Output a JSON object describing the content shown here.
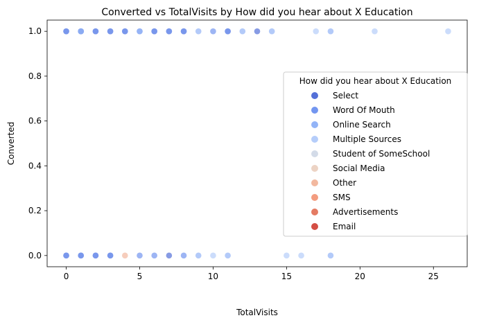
{
  "chart_data": {
    "type": "scatter",
    "title": "Converted vs TotalVisits by How did you hear about X Education",
    "xlabel": "TotalVisits",
    "ylabel": "Converted",
    "xlim": [
      -1.3,
      27.3
    ],
    "ylim": [
      -0.05,
      1.05
    ],
    "xticks": [
      0,
      5,
      10,
      15,
      20,
      25
    ],
    "yticks": [
      0.0,
      0.2,
      0.4,
      0.6,
      0.8,
      1.0
    ],
    "grid": false,
    "legend": {
      "title": "How did you hear about X Education",
      "placement": "center-right"
    },
    "series": [
      {
        "name": "Select",
        "color": "#5470d8",
        "x": [
          0,
          1,
          2,
          3,
          4,
          6,
          7,
          8,
          11,
          13,
          0,
          1,
          2,
          3,
          7
        ],
        "y": [
          1,
          1,
          1,
          1,
          1,
          1,
          1,
          1,
          1,
          1,
          0,
          0,
          0,
          0,
          0
        ]
      },
      {
        "name": "Word Of Mouth",
        "color": "#7396f0",
        "x": [
          0,
          1,
          2,
          3,
          4,
          5,
          6,
          7,
          8,
          10,
          11,
          0,
          1,
          2,
          3,
          5,
          6,
          8
        ],
        "y": [
          1,
          1,
          1,
          1,
          1,
          1,
          1,
          1,
          1,
          1,
          1,
          0,
          0,
          0,
          0,
          0,
          0,
          0
        ]
      },
      {
        "name": "Online Search",
        "color": "#93b4f7",
        "x": [
          1,
          5,
          9,
          12,
          14,
          18,
          9,
          11,
          18
        ],
        "y": [
          1,
          1,
          1,
          1,
          1,
          1,
          0,
          0,
          0
        ]
      },
      {
        "name": "Multiple Sources",
        "color": "#b5cdfa",
        "x": [
          17,
          21,
          26,
          10,
          15,
          16
        ],
        "y": [
          1,
          1,
          1,
          0,
          0,
          0
        ]
      },
      {
        "name": "Student of SomeSchool",
        "color": "#d3dbe8",
        "x": [],
        "y": []
      },
      {
        "name": "Social Media",
        "color": "#ecd3c4",
        "x": [],
        "y": []
      },
      {
        "name": "Other",
        "color": "#f2b89f",
        "x": [
          4
        ],
        "y": [
          0
        ]
      },
      {
        "name": "SMS",
        "color": "#f39c7f",
        "x": [],
        "y": []
      },
      {
        "name": "Advertisements",
        "color": "#e47b63",
        "x": [],
        "y": []
      },
      {
        "name": "Email",
        "color": "#d44e44",
        "x": [],
        "y": []
      }
    ]
  }
}
